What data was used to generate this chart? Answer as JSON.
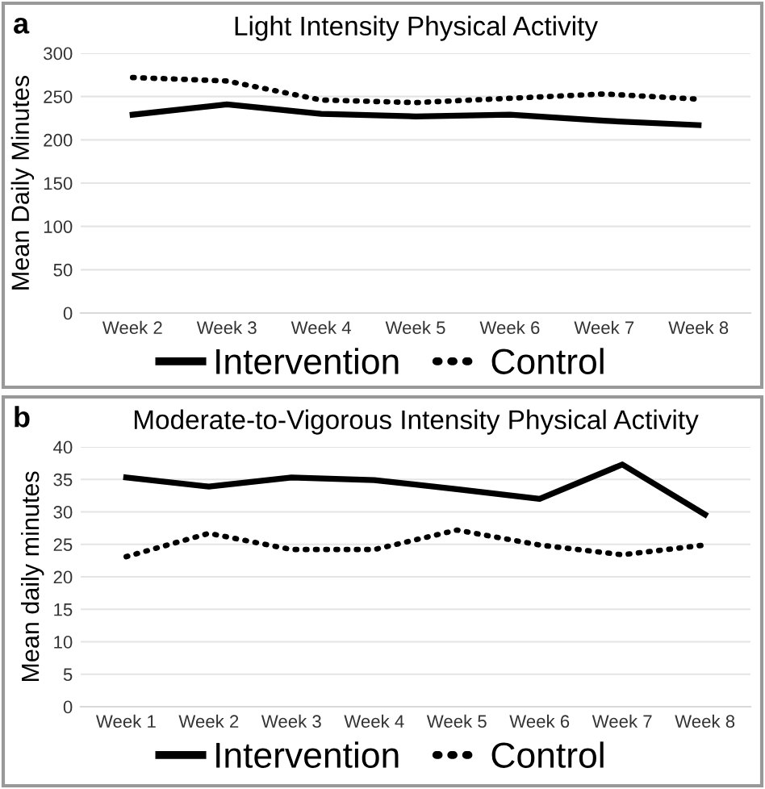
{
  "chart_data": [
    {
      "type": "line",
      "title": "Light Intensity Physical Activity",
      "ylabel": "Mean Daily Minutes",
      "annotations": [
        "a"
      ],
      "categories": [
        "Week 2",
        "Week 3",
        "Week 4",
        "Week 5",
        "Week 6",
        "Week 7",
        "Week 8"
      ],
      "series": [
        {
          "name": "Intervention",
          "color": "#000000",
          "line_style": "solid",
          "values": [
            229,
            241,
            230,
            227,
            229,
            222,
            217
          ]
        },
        {
          "name": "Control",
          "color": "#000000",
          "line_style": "dotted",
          "values": [
            272,
            268,
            246,
            243,
            248,
            253,
            247
          ]
        }
      ],
      "ylim": [
        0,
        300
      ],
      "yticks": [
        0,
        50,
        100,
        150,
        200,
        250,
        300
      ],
      "grid": "y",
      "legend": "bottom",
      "marker": "none"
    },
    {
      "type": "line",
      "title": "Moderate-to-Vigorous Intensity Physical Activity",
      "ylabel": "Mean daily minutes",
      "annotations": [
        "b"
      ],
      "categories": [
        "Week 1",
        "Week 2",
        "Week 3",
        "Week 4",
        "Week 5",
        "Week 6",
        "Week 7",
        "Week 8"
      ],
      "series": [
        {
          "name": "Intervention",
          "color": "#000000",
          "line_style": "solid",
          "values": [
            35.3,
            33.9,
            35.3,
            34.9,
            33.5,
            32.0,
            37.3,
            29.6
          ]
        },
        {
          "name": "Control",
          "color": "#000000",
          "line_style": "dotted",
          "values": [
            23.1,
            26.7,
            24.2,
            24.2,
            27.2,
            24.9,
            23.4,
            24.9
          ]
        }
      ],
      "ylim": [
        0,
        40
      ],
      "yticks": [
        0,
        5,
        10,
        15,
        20,
        25,
        30,
        35,
        40
      ],
      "grid": "y",
      "legend": "bottom",
      "marker": "none"
    }
  ]
}
